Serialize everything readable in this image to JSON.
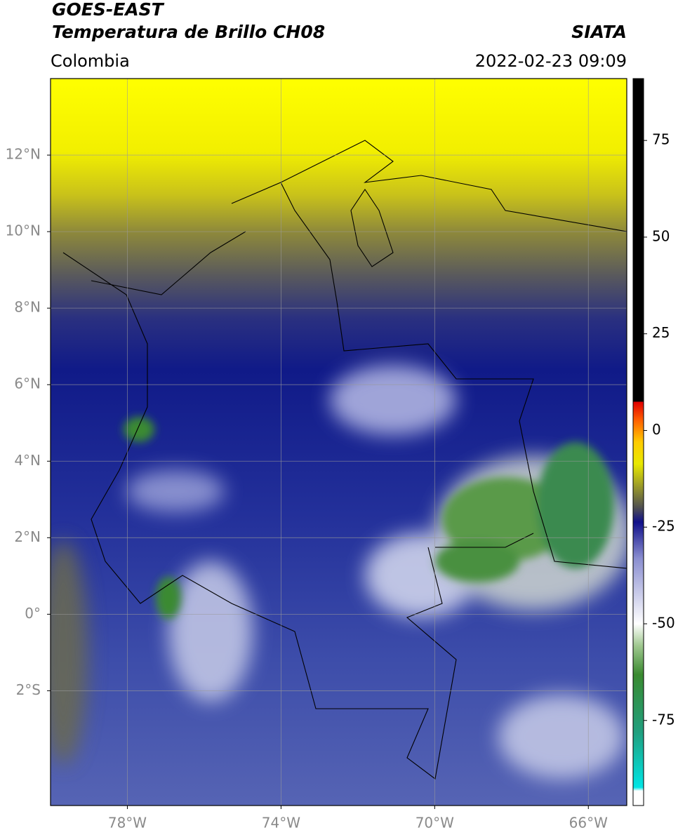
{
  "header": {
    "title": "GOES-EAST",
    "subtitle": "Temperatura de Brillo CH08",
    "region": "Colombia",
    "source": "SIATA",
    "datetime": "2022-02-23 09:09"
  },
  "map": {
    "xlim": [
      -80,
      -65
    ],
    "ylim": [
      -5,
      14
    ],
    "xticks": [
      {
        "value": -78,
        "label": "78°W"
      },
      {
        "value": -74,
        "label": "74°W"
      },
      {
        "value": -70,
        "label": "70°W"
      },
      {
        "value": -66,
        "label": "66°W"
      }
    ],
    "yticks": [
      {
        "value": 12,
        "label": "12°N"
      },
      {
        "value": 10,
        "label": "10°N"
      },
      {
        "value": 8,
        "label": "8°N"
      },
      {
        "value": 6,
        "label": "6°N"
      },
      {
        "value": 4,
        "label": "4°N"
      },
      {
        "value": 2,
        "label": "2°N"
      },
      {
        "value": 0,
        "label": "0°"
      },
      {
        "value": -2,
        "label": "2°S"
      }
    ],
    "grid": true
  },
  "colorbar": {
    "clim": [
      -97,
      91
    ],
    "ticks": [
      75,
      50,
      25,
      0,
      -25,
      -50,
      -75
    ]
  }
}
